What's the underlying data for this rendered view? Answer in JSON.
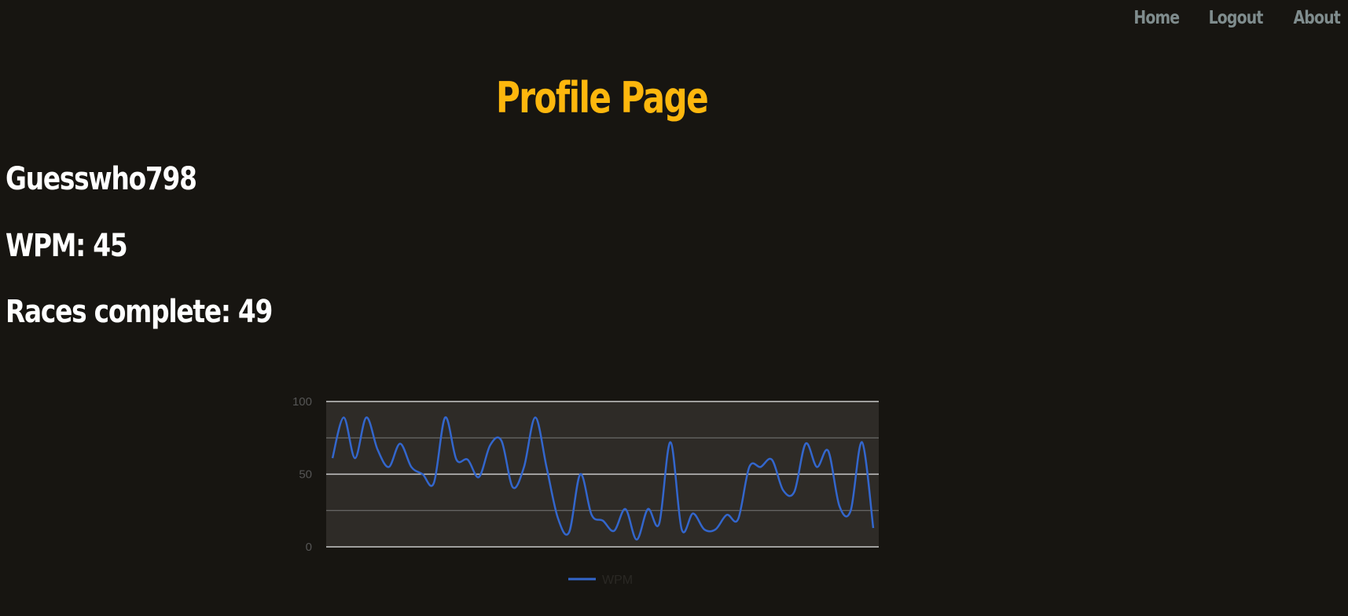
{
  "nav": {
    "home": "Home",
    "logout": "Logout",
    "about": "About"
  },
  "page": {
    "title": "Profile Page"
  },
  "profile": {
    "username": "Guesswho798",
    "wpm_text": "WPM: 45",
    "races_text": "Races complete: 49"
  },
  "colors": {
    "background": "#171511",
    "title": "#fdb70d",
    "nav": "#7f8c8d",
    "stat_text": "#ffffff",
    "line": "#3366cc",
    "plot_bg": "#2e2b27"
  },
  "chart_data": {
    "type": "line",
    "ylim": [
      0,
      100
    ],
    "yticks": [
      "100",
      "50",
      "0"
    ],
    "grid": true,
    "legend": "bottom",
    "series": [
      {
        "name": "WPM",
        "values": [
          61,
          89,
          61,
          89,
          67,
          55,
          71,
          55,
          50,
          44,
          89,
          60,
          60,
          48,
          70,
          73,
          41,
          55,
          89,
          55,
          20,
          10,
          50,
          22,
          18,
          11,
          26,
          5,
          26,
          16,
          72,
          12,
          23,
          12,
          12,
          22,
          19,
          55,
          55,
          60,
          39,
          38,
          71,
          55,
          66,
          28,
          25,
          72,
          13
        ]
      }
    ]
  }
}
